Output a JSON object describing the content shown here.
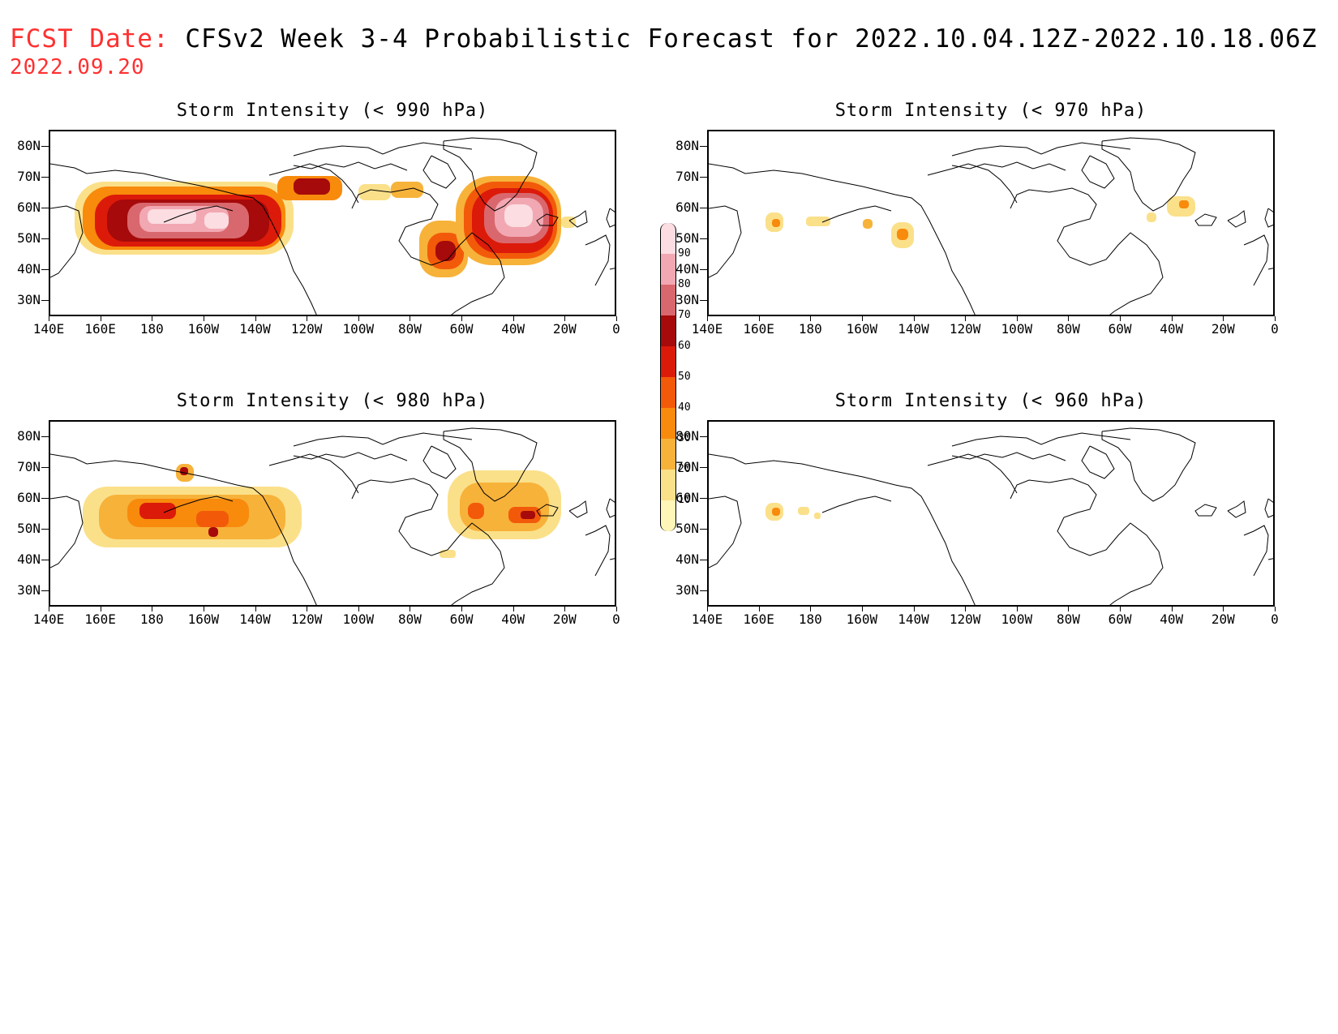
{
  "header": {
    "label": "FCST Date:",
    "title": "CFSv2 Week 3-4 Probabilistic Forecast for 2022.10.04.12Z-2022.10.18.06Z",
    "date": "2022.09.20"
  },
  "axes": {
    "lat_labels": [
      "80N",
      "70N",
      "60N",
      "50N",
      "40N",
      "30N"
    ],
    "lon_labels": [
      "140E",
      "160E",
      "180",
      "160W",
      "140W",
      "120W",
      "100W",
      "80W",
      "60W",
      "40W",
      "20W",
      "0"
    ]
  },
  "panels": [
    {
      "id": "p990",
      "title": "Storm Intensity (< 990 hPa)"
    },
    {
      "id": "p970",
      "title": "Storm Intensity (< 970 hPa)"
    },
    {
      "id": "p980",
      "title": "Storm Intensity (< 980 hPa)"
    },
    {
      "id": "p960",
      "title": "Storm Intensity (< 960 hPa)"
    }
  ],
  "colorbar": {
    "levels": [
      "10",
      "20",
      "30",
      "40",
      "50",
      "60",
      "70",
      "80",
      "90"
    ],
    "colors": [
      "#fff6b8",
      "#fbe08a",
      "#f7b23a",
      "#f88a0c",
      "#f25a0a",
      "#dc1a0a",
      "#a60a0a",
      "#d9686e",
      "#f2a8b2",
      "#fbdde2"
    ]
  }
}
